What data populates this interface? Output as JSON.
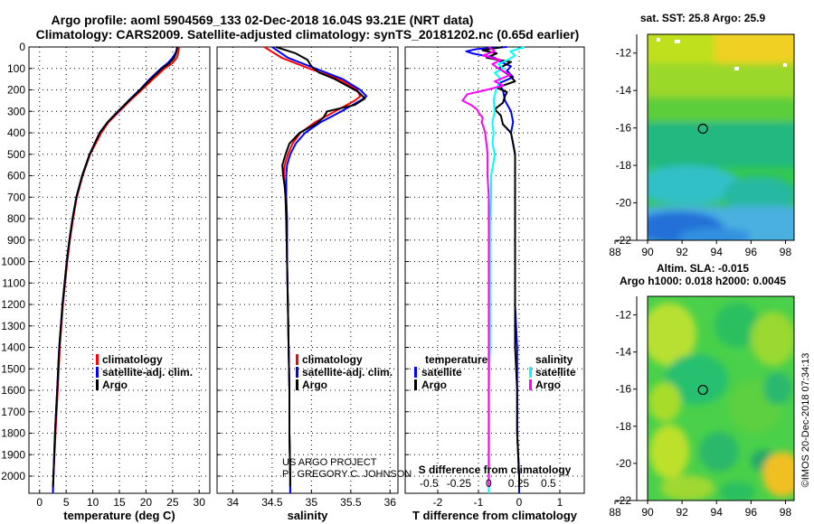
{
  "header": {
    "line1": "Argo profile: aoml 5904569_133 02-Dec-2018 16.04S 93.21E (NRT data)",
    "line2": "Climatology: CARS2009. Satellite-adjusted climatology: synTS_20181202.nc (0.65d earlier)"
  },
  "credit": {
    "project": "US ARGO PROJECT",
    "pi": "PI: GREGORY C. JOHNSON",
    "imos": "©IMOS 20-Dec-2018 07:34:13"
  },
  "colors": {
    "climatology": "#ff0000",
    "satellite": "#0000ff",
    "argo": "#000000",
    "salinity_satellite": "#00ffff",
    "salinity_argo": "#ff00ff"
  },
  "chart_data": [
    {
      "id": "temperature",
      "type": "line",
      "xlabel": "temperature (deg C)",
      "ylabel": "",
      "xlim": [
        -2,
        32
      ],
      "ylim": [
        2080,
        0
      ],
      "xticks": [
        0,
        5,
        10,
        15,
        20,
        25,
        30
      ],
      "yticks": [
        0,
        100,
        200,
        300,
        400,
        500,
        600,
        700,
        800,
        900,
        1000,
        1100,
        1200,
        1300,
        1400,
        1500,
        1600,
        1700,
        1800,
        1900,
        2000
      ],
      "legend": [
        "climatology",
        "satellite-adj. clim.",
        "Argo"
      ],
      "legend_position": "lower-center",
      "series": [
        {
          "name": "climatology",
          "color": "#ff0000",
          "depth": [
            0,
            25,
            50,
            75,
            100,
            150,
            200,
            250,
            300,
            350,
            400,
            500,
            600,
            700,
            800,
            900,
            1000,
            1200,
            1400,
            1600,
            1800,
            2000,
            2080
          ],
          "values": [
            26.2,
            26.1,
            25.8,
            25,
            23.5,
            21.3,
            19.2,
            17.0,
            15.0,
            13.0,
            11.6,
            9.5,
            8.1,
            7.0,
            6.3,
            5.7,
            5.2,
            4.4,
            3.8,
            3.4,
            3.0,
            2.6,
            2.5
          ]
        },
        {
          "name": "satellite-adj. clim.",
          "color": "#0000ff",
          "depth": [
            0,
            25,
            50,
            75,
            100,
            150,
            200,
            250,
            300,
            350,
            400,
            500,
            600,
            700,
            800,
            900,
            1000,
            1200,
            1400,
            1600,
            1800,
            2000,
            2080
          ],
          "values": [
            25.9,
            25.6,
            25.0,
            24.1,
            22.8,
            20.7,
            18.8,
            16.7,
            14.8,
            12.8,
            11.3,
            9.4,
            8.0,
            6.9,
            6.2,
            5.6,
            5.1,
            4.3,
            3.7,
            3.3,
            2.9,
            2.6,
            2.5
          ]
        },
        {
          "name": "Argo",
          "color": "#000000",
          "depth": [
            0,
            25,
            50,
            75,
            100,
            150,
            200,
            250,
            300,
            350,
            400,
            500,
            600,
            700,
            800,
            900,
            1000,
            1200,
            1400,
            1600,
            1800,
            2000,
            2050
          ],
          "values": [
            25.9,
            25.7,
            25.3,
            24.4,
            23.0,
            20.9,
            18.9,
            16.8,
            14.7,
            12.8,
            11.3,
            9.4,
            8.0,
            6.9,
            6.2,
            5.6,
            5.1,
            4.3,
            3.7,
            3.3,
            2.9,
            2.6,
            2.5
          ]
        }
      ]
    },
    {
      "id": "salinity",
      "type": "line",
      "xlabel": "salinity",
      "ylabel": "",
      "xlim": [
        33.8,
        36.1
      ],
      "ylim": [
        2080,
        0
      ],
      "xticks": [
        34,
        34.5,
        35,
        35.5,
        36
      ],
      "legend": [
        "climatology",
        "satellite-adj. clim.",
        "Argo"
      ],
      "legend_position": "lower-center",
      "series": [
        {
          "name": "climatology",
          "color": "#ff0000",
          "depth": [
            0,
            50,
            100,
            150,
            200,
            230,
            250,
            300,
            350,
            400,
            450,
            500,
            550,
            600,
            650,
            700,
            800,
            1000,
            1200,
            1400,
            1600,
            1800,
            2000,
            2080
          ],
          "values": [
            34.4,
            34.62,
            34.97,
            35.35,
            35.58,
            35.62,
            35.55,
            35.3,
            35.05,
            34.86,
            34.76,
            34.7,
            34.66,
            34.65,
            34.66,
            34.67,
            34.68,
            34.69,
            34.7,
            34.71,
            34.72,
            34.72,
            34.73,
            34.73
          ]
        },
        {
          "name": "satellite-adj. clim.",
          "color": "#0000ff",
          "depth": [
            0,
            50,
            100,
            150,
            200,
            230,
            250,
            300,
            350,
            400,
            450,
            500,
            550,
            600,
            650,
            700,
            800,
            1000,
            1200,
            1400,
            1600,
            1800,
            2000,
            2080
          ],
          "values": [
            34.5,
            34.7,
            35.05,
            35.4,
            35.62,
            35.7,
            35.62,
            35.38,
            35.12,
            34.92,
            34.8,
            34.73,
            34.69,
            34.68,
            34.68,
            34.68,
            34.69,
            34.69,
            34.7,
            34.71,
            34.72,
            34.72,
            34.73,
            34.73
          ]
        },
        {
          "name": "Argo",
          "color": "#000000",
          "depth": [
            0,
            30,
            60,
            90,
            120,
            150,
            180,
            210,
            240,
            270,
            300,
            330,
            360,
            400,
            450,
            500,
            550,
            600,
            650,
            700,
            800,
            1000,
            1200,
            1400,
            1600,
            1800,
            2000,
            2050
          ],
          "values": [
            34.55,
            34.8,
            34.95,
            35.0,
            35.1,
            35.3,
            35.45,
            35.6,
            35.68,
            35.55,
            35.2,
            35.15,
            35.05,
            34.85,
            34.72,
            34.67,
            34.63,
            34.64,
            34.66,
            34.67,
            34.68,
            34.69,
            34.7,
            34.71,
            34.72,
            34.72,
            34.73,
            34.73
          ]
        }
      ]
    },
    {
      "id": "differences",
      "type": "line",
      "xlabel": "T difference from climatology",
      "xlabel2": "S difference from climatology",
      "xlim": [
        -2.8,
        1.6
      ],
      "xticks": [
        -2,
        -1,
        0,
        1
      ],
      "xlim2": [
        -0.7,
        0.8
      ],
      "xticks2": [
        -0.5,
        -0.25,
        0,
        0.25,
        0.5
      ],
      "xticklabels2": [
        "-0.5",
        "-0.25",
        "0",
        "0.25",
        "0.5"
      ],
      "ylim": [
        2080,
        0
      ],
      "legend_temperature_title": "temperature",
      "legend_salinity_title": "salinity",
      "legend_temperature": [
        "satellite",
        "Argo"
      ],
      "legend_salinity": [
        "satellite",
        "Argo"
      ],
      "series": [
        {
          "name": "T satellite",
          "axis": "T",
          "color": "#0000ff",
          "depth": [
            0,
            10,
            20,
            30,
            50,
            70,
            90,
            110,
            140,
            170,
            200,
            250,
            300,
            350,
            400,
            500,
            600,
            800,
            1000,
            1200,
            1400,
            1600,
            1800,
            2000,
            2080
          ],
          "values": [
            -0.3,
            -1.05,
            -1.3,
            -1.15,
            -0.6,
            -0.45,
            -0.2,
            -0.3,
            -0.15,
            -0.5,
            -0.4,
            -0.35,
            -0.2,
            -0.15,
            -0.2,
            -0.1,
            -0.1,
            -0.1,
            -0.1,
            -0.1,
            -0.05,
            -0.05,
            -0.05,
            0.0,
            0.0
          ]
        },
        {
          "name": "T Argo",
          "axis": "T",
          "color": "#000000",
          "depth": [
            0,
            15,
            30,
            50,
            70,
            100,
            130,
            160,
            190,
            210,
            230,
            260,
            290,
            320,
            360,
            400,
            450,
            500,
            600,
            700,
            800,
            1000,
            1200,
            1400,
            1600,
            1800,
            2000,
            2050
          ],
          "values": [
            -0.4,
            -0.9,
            -0.55,
            -0.8,
            -0.2,
            -0.5,
            -0.25,
            -0.1,
            -0.55,
            -0.3,
            -0.35,
            -0.4,
            -0.6,
            -0.45,
            -0.4,
            -0.2,
            -0.15,
            -0.1,
            -0.1,
            -0.1,
            -0.1,
            -0.1,
            -0.1,
            -0.1,
            -0.05,
            -0.05,
            0.0,
            0.0
          ]
        },
        {
          "name": "S satellite",
          "axis": "S",
          "color": "#00ffff",
          "depth": [
            0,
            20,
            40,
            60,
            80,
            100,
            120,
            150,
            200,
            250,
            300,
            350,
            400,
            450,
            500,
            600,
            700,
            800,
            900,
            1000,
            1200,
            1400,
            1600,
            1800,
            2000,
            2080
          ],
          "values": [
            0.3,
            0.18,
            0.22,
            0.16,
            0.08,
            0.12,
            0.05,
            0.1,
            0.06,
            0.04,
            0.05,
            0.03,
            0.04,
            0.03,
            0.05,
            0.02,
            0.02,
            0.01,
            0.01,
            0.01,
            0.01,
            0.01,
            0.0,
            0.0,
            0.0,
            0.0
          ]
        },
        {
          "name": "S Argo",
          "axis": "S",
          "color": "#ff00ff",
          "depth": [
            0,
            20,
            40,
            60,
            80,
            100,
            130,
            160,
            180,
            200,
            220,
            250,
            270,
            290,
            310,
            330,
            350,
            380,
            400,
            450,
            500,
            600,
            700,
            800,
            1000,
            1200,
            1400,
            1600,
            1800,
            2000,
            2050
          ],
          "values": [
            0.0,
            0.05,
            -0.05,
            0.1,
            0.03,
            0.08,
            0.18,
            0.05,
            0.12,
            -0.02,
            -0.18,
            -0.22,
            -0.15,
            -0.1,
            -0.08,
            -0.05,
            -0.06,
            -0.04,
            -0.03,
            -0.02,
            -0.01,
            -0.01,
            0.0,
            0.0,
            0.0,
            0.0,
            0.0,
            0.0,
            0.0,
            0.0,
            0.0
          ]
        }
      ]
    },
    {
      "id": "sst_map",
      "type": "heatmap",
      "title": "sat. SST: 25.8 Argo: 25.9",
      "xlim": [
        88,
        98.5
      ],
      "ylim": [
        -22,
        -11
      ],
      "xticks": [
        88,
        90,
        92,
        94,
        96,
        98
      ],
      "yticks": [
        -12,
        -14,
        -16,
        -18,
        -20,
        -22
      ],
      "float_position": {
        "lon": 93.21,
        "lat": -16.04
      }
    },
    {
      "id": "sla_map",
      "type": "heatmap",
      "title": "Altim. SLA: -0.015",
      "subtitle": "Argo h1000: 0.018 h2000: 0.0045",
      "xlim": [
        88,
        98.5
      ],
      "ylim": [
        -22,
        -11
      ],
      "xticks": [
        88,
        90,
        92,
        94,
        96,
        98
      ],
      "yticks": [
        -12,
        -14,
        -16,
        -18,
        -20,
        -22
      ],
      "float_position": {
        "lon": 93.21,
        "lat": -16.04
      }
    }
  ]
}
